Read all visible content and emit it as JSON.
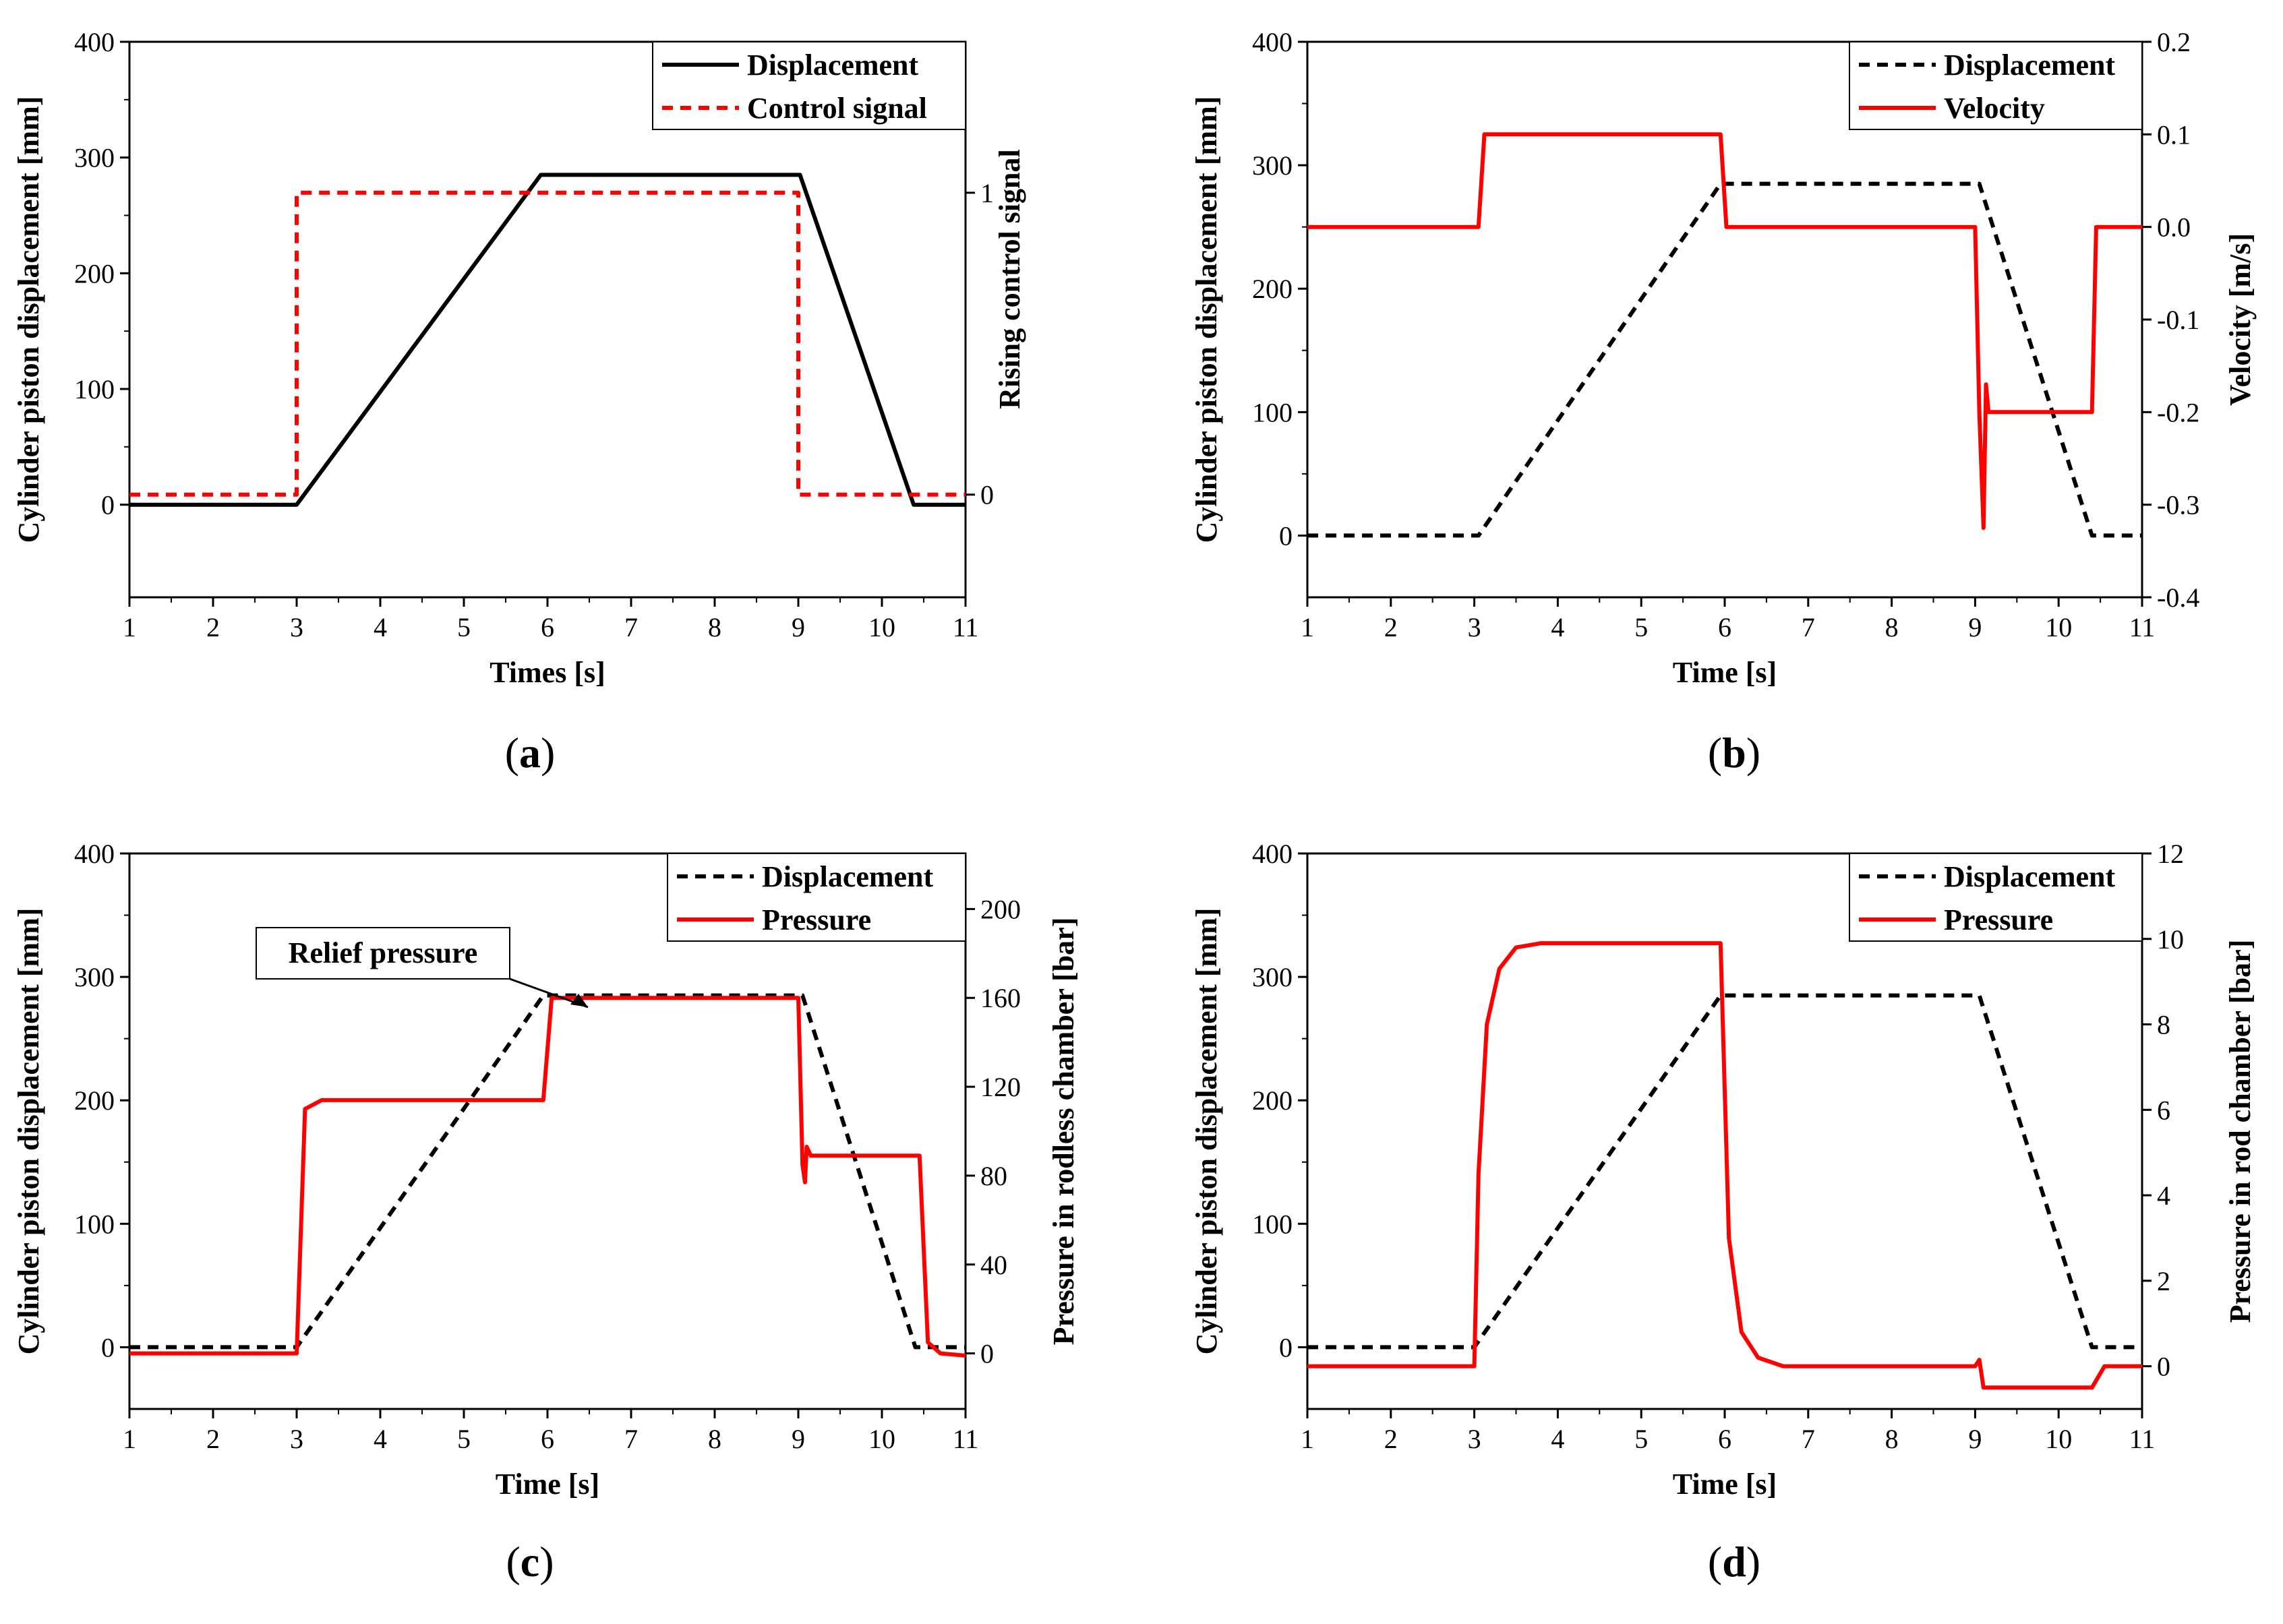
{
  "chart_data": [
    {
      "panel_label": "(a)",
      "caption_prefix": "(",
      "caption_letter": "a",
      "caption_suffix": ")",
      "type": "line",
      "xlabel": "Times [s]",
      "ylabel": "Cylinder piston displacement [mm]",
      "y2label": "Rising control signal",
      "xlim": [
        1,
        11
      ],
      "ylim": [
        -80,
        400
      ],
      "y2lim": [
        -0.34,
        1.5
      ],
      "xticks": [
        1,
        2,
        3,
        4,
        5,
        6,
        7,
        8,
        9,
        10,
        11
      ],
      "yticks": [
        0,
        100,
        200,
        300,
        400
      ],
      "y2ticks": [
        0,
        1
      ],
      "grid": false,
      "legend_position": "top-right",
      "series": [
        {
          "name": "Displacement",
          "axis": "left",
          "color": "#000000",
          "dash": "solid",
          "points": [
            [
              1,
              0
            ],
            [
              3,
              0
            ],
            [
              5.92,
              285
            ],
            [
              9.02,
              285
            ],
            [
              10.38,
              0
            ],
            [
              11,
              0
            ]
          ]
        },
        {
          "name": "Control signal",
          "axis": "right",
          "color": "#ff0000",
          "dash": "dashed",
          "points": [
            [
              1,
              0
            ],
            [
              3,
              0
            ],
            [
              3,
              1
            ],
            [
              9,
              1
            ],
            [
              9,
              0
            ],
            [
              11,
              0
            ]
          ]
        }
      ]
    },
    {
      "panel_label": "(b)",
      "caption_prefix": "(",
      "caption_letter": "b",
      "caption_suffix": ")",
      "type": "line",
      "xlabel": "Time [s]",
      "ylabel": "Cylinder piston displacement [mm]",
      "y2label": "Velocity [m/s]",
      "xlim": [
        1,
        11
      ],
      "ylim": [
        -50,
        400
      ],
      "y2lim": [
        -0.4,
        0.2
      ],
      "xticks": [
        1,
        2,
        3,
        4,
        5,
        6,
        7,
        8,
        9,
        10,
        11
      ],
      "yticks": [
        0,
        100,
        200,
        300,
        400
      ],
      "y2ticks": [
        0.2,
        0.1,
        0.0,
        -0.1,
        -0.2,
        -0.3,
        -0.4
      ],
      "y2tick_labels": [
        "0.2",
        "0.1",
        "0.0",
        "-0.1",
        "-0.2",
        "-0.3",
        "-0.4"
      ],
      "grid": false,
      "legend_position": "top-right",
      "series": [
        {
          "name": "Displacement",
          "axis": "left",
          "color": "#000000",
          "dash": "dashed",
          "points": [
            [
              1,
              0
            ],
            [
              3.05,
              0
            ],
            [
              5.95,
              285
            ],
            [
              9.05,
              285
            ],
            [
              10.4,
              0
            ],
            [
              11,
              0
            ]
          ]
        },
        {
          "name": "Velocity",
          "axis": "right",
          "color": "#ff0000",
          "dash": "solid",
          "points": [
            [
              1,
              0
            ],
            [
              3.05,
              0
            ],
            [
              3.12,
              0.1
            ],
            [
              5.95,
              0.1
            ],
            [
              6.02,
              0
            ],
            [
              9.0,
              0
            ],
            [
              9.05,
              -0.2
            ],
            [
              9.1,
              -0.325
            ],
            [
              9.13,
              -0.17
            ],
            [
              9.16,
              -0.2
            ],
            [
              10.4,
              -0.2
            ],
            [
              10.45,
              0
            ],
            [
              11,
              0
            ]
          ]
        }
      ]
    },
    {
      "panel_label": "(c)",
      "caption_prefix": "(",
      "caption_letter": "c",
      "caption_suffix": ")",
      "type": "line",
      "xlabel": "Time [s]",
      "ylabel": "Cylinder piston displacement [mm]",
      "y2label": "Pressure in rodless chamber [bar]",
      "xlim": [
        1,
        11
      ],
      "ylim": [
        -50,
        400
      ],
      "y2lim": [
        -25,
        225
      ],
      "xticks": [
        1,
        2,
        3,
        4,
        5,
        6,
        7,
        8,
        9,
        10,
        11
      ],
      "yticks": [
        0,
        100,
        200,
        300,
        400
      ],
      "y2ticks": [
        0,
        40,
        80,
        120,
        160,
        200
      ],
      "grid": false,
      "legend_position": "top-right",
      "annotation": "Relief pressure",
      "series": [
        {
          "name": "Displacement",
          "axis": "left",
          "color": "#000000",
          "dash": "dashed",
          "points": [
            [
              1,
              0
            ],
            [
              3,
              0
            ],
            [
              5.95,
              285
            ],
            [
              9.05,
              285
            ],
            [
              10.4,
              0
            ],
            [
              11,
              0
            ]
          ]
        },
        {
          "name": "Pressure",
          "axis": "right",
          "color": "#ff0000",
          "dash": "solid",
          "points": [
            [
              1,
              0
            ],
            [
              3.0,
              0
            ],
            [
              3.1,
              110
            ],
            [
              3.3,
              114
            ],
            [
              5.95,
              114
            ],
            [
              6.05,
              160
            ],
            [
              9.0,
              160
            ],
            [
              9.05,
              85
            ],
            [
              9.08,
              77
            ],
            [
              9.1,
              93
            ],
            [
              9.15,
              89
            ],
            [
              10.45,
              89
            ],
            [
              10.55,
              5
            ],
            [
              10.7,
              0
            ],
            [
              11,
              -1
            ]
          ]
        }
      ]
    },
    {
      "panel_label": "(d)",
      "caption_prefix": "(",
      "caption_letter": "d",
      "caption_suffix": ")",
      "type": "line",
      "xlabel": "Time [s]",
      "ylabel": "Cylinder piston displacement [mm]",
      "y2label": "Pressure in rod chamber [bar]",
      "xlim": [
        1,
        11
      ],
      "ylim": [
        -50,
        400
      ],
      "y2lim": [
        -1,
        12
      ],
      "xticks": [
        1,
        2,
        3,
        4,
        5,
        6,
        7,
        8,
        9,
        10,
        11
      ],
      "yticks": [
        0,
        100,
        200,
        300,
        400
      ],
      "y2ticks": [
        0,
        2,
        4,
        6,
        8,
        10,
        12
      ],
      "grid": false,
      "legend_position": "top-right",
      "series": [
        {
          "name": "Displacement",
          "axis": "left",
          "color": "#000000",
          "dash": "dashed",
          "points": [
            [
              1,
              0
            ],
            [
              3,
              0
            ],
            [
              5.95,
              285
            ],
            [
              9.05,
              285
            ],
            [
              10.4,
              0
            ],
            [
              11,
              0
            ]
          ]
        },
        {
          "name": "Pressure",
          "axis": "right",
          "color": "#ff0000",
          "dash": "solid",
          "points": [
            [
              1,
              0
            ],
            [
              3.0,
              0
            ],
            [
              3.05,
              4.5
            ],
            [
              3.15,
              8
            ],
            [
              3.3,
              9.3
            ],
            [
              3.5,
              9.8
            ],
            [
              3.8,
              9.9
            ],
            [
              5.95,
              9.9
            ],
            [
              6.05,
              3
            ],
            [
              6.2,
              0.8
            ],
            [
              6.4,
              0.2
            ],
            [
              6.7,
              0
            ],
            [
              9.0,
              0
            ],
            [
              9.05,
              0.15
            ],
            [
              9.1,
              -0.5
            ],
            [
              10.4,
              -0.5
            ],
            [
              10.55,
              0
            ],
            [
              11,
              0
            ]
          ]
        }
      ]
    }
  ]
}
